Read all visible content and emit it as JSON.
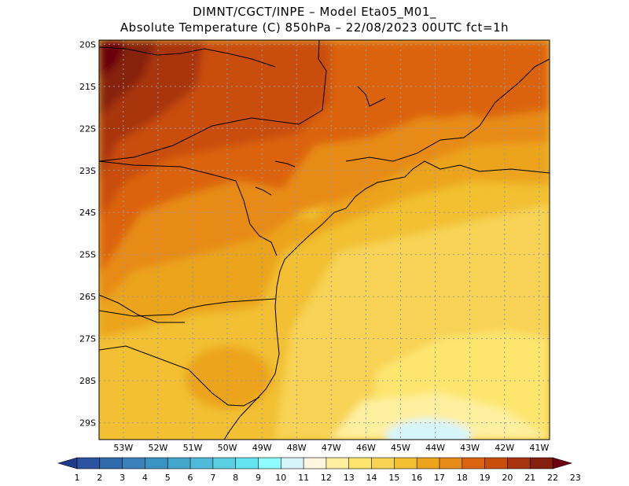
{
  "header": {
    "line1": "DIMNT/CGCT/INPE –  Model Eta05_M01_",
    "line2": "Absolute Temperature (C) 850hPa –  22/08/2023 00UTC fct=1h"
  },
  "map": {
    "lat_labels": [
      "20S",
      "21S",
      "22S",
      "23S",
      "24S",
      "25S",
      "26S",
      "27S",
      "28S",
      "29S"
    ],
    "lon_labels": [
      "53W",
      "52W",
      "51W",
      "50W",
      "49W",
      "48W",
      "47W",
      "46W",
      "45W",
      "44W",
      "43W",
      "42W",
      "41W"
    ],
    "lat_range": [
      -29.4,
      -19.9
    ],
    "lon_range": [
      -53.7,
      -40.7
    ],
    "variable": "Absolute Temperature",
    "unit": "C",
    "level": "850hPa"
  },
  "colorbar": {
    "labels": [
      "1",
      "2",
      "3",
      "4",
      "5",
      "6",
      "7",
      "8",
      "9",
      "10",
      "11",
      "12",
      "13",
      "14",
      "15",
      "16",
      "17",
      "18",
      "19",
      "20",
      "21",
      "22",
      "23"
    ],
    "colors": [
      "#1f3c8c",
      "#2a54a0",
      "#2f6aac",
      "#3b80b8",
      "#3a93c2",
      "#45a6cc",
      "#50bbd8",
      "#5bcfe2",
      "#63e4ef",
      "#8ffcff",
      "#d6f5fa",
      "#fff6df",
      "#fff0a0",
      "#fde56e",
      "#f8d354",
      "#f2c030",
      "#eca41a",
      "#e78b18",
      "#dc6410",
      "#c94d0c",
      "#a93510",
      "#86200e",
      "#6a0010"
    ]
  }
}
